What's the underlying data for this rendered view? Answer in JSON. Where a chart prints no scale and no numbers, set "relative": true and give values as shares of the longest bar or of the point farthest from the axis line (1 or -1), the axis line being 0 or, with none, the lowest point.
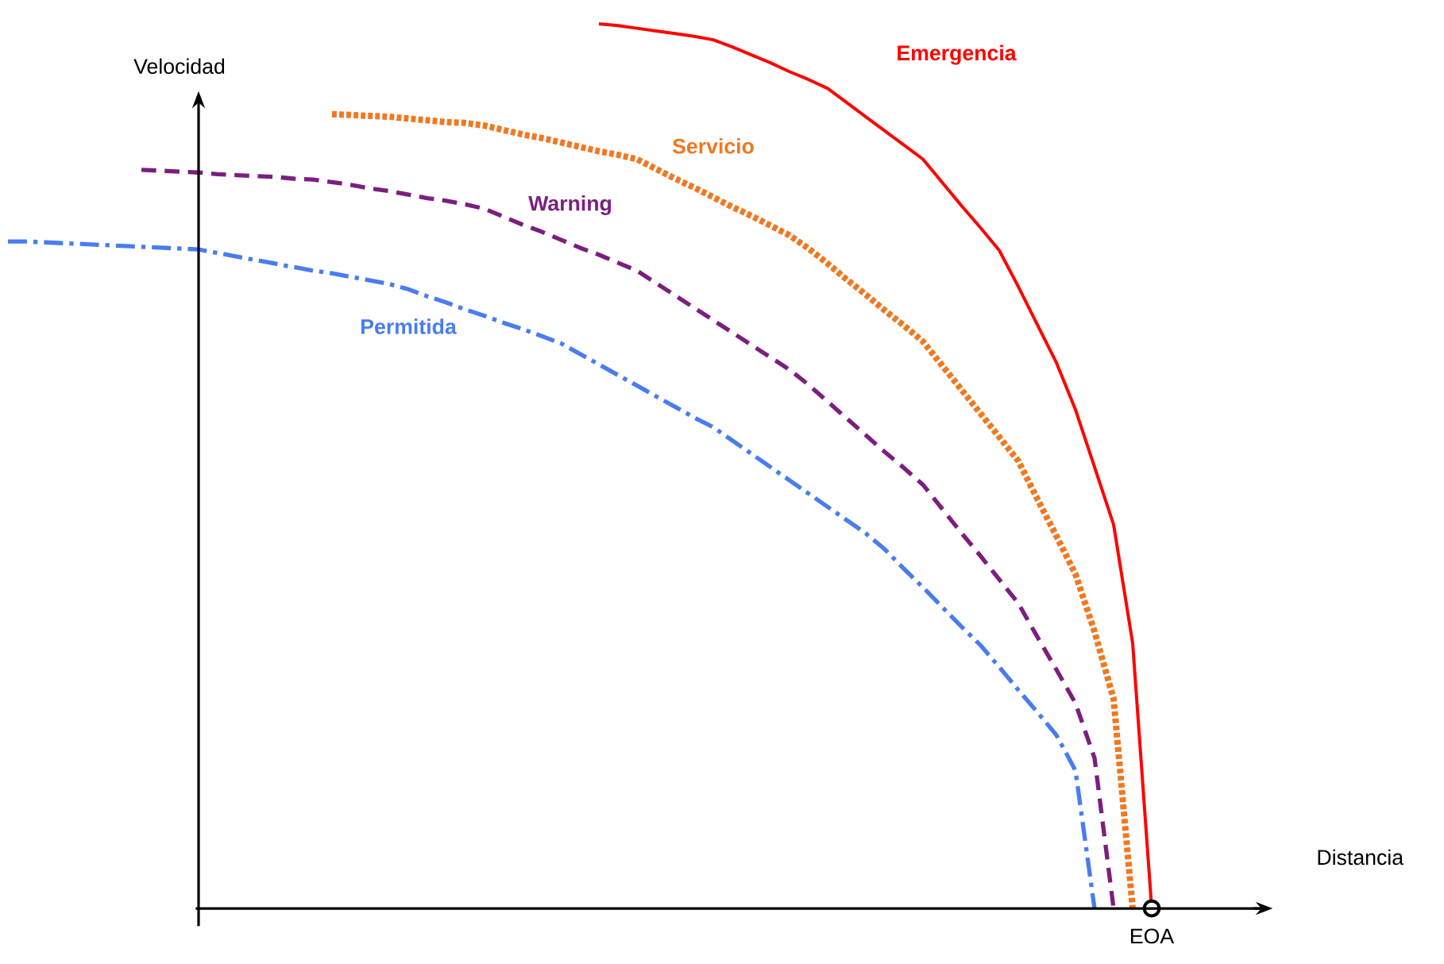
{
  "chart_data": {
    "type": "line",
    "relative": true,
    "ylabel": "Velocidad",
    "legend": false,
    "marker": "none",
    "annotations": [
      "EOA",
      "Distancia"
    ],
    "categories": [
      null,
      null,
      null,
      null,
      null,
      null,
      null,
      null,
      null,
      null,
      null,
      null,
      null,
      null,
      null,
      null,
      null,
      null,
      null,
      null,
      null,
      null,
      null,
      null,
      null,
      null,
      null,
      null,
      null,
      null,
      null,
      null,
      null,
      null,
      null,
      null,
      null,
      null,
      null,
      null,
      null,
      null,
      null,
      null,
      null,
      null,
      null,
      null,
      null,
      null,
      null,
      null,
      null,
      null,
      null,
      null,
      null,
      null,
      null,
      null,
      null
    ],
    "series": [
      {
        "name": "Emergencia",
        "color": "#ff0000",
        "line_style": "solid",
        "values": [
          null,
          null,
          null,
          null,
          null,
          null,
          null,
          null,
          null,
          null,
          null,
          null,
          null,
          null,
          null,
          null,
          null,
          null,
          null,
          null,
          null,
          null,
          null,
          null,
          null,
          null,
          null,
          null,
          null,
          null,
          null,
          1.0,
          0.998,
          0.995,
          0.992,
          0.989,
          0.986,
          0.982,
          0.974,
          0.965,
          0.956,
          0.946,
          0.937,
          0.927,
          0.911,
          0.895,
          0.879,
          0.863,
          0.847,
          0.821,
          0.795,
          0.77,
          0.744,
          0.703,
          0.66,
          0.617,
          0.564,
          0.499,
          0.434,
          0.3,
          0
        ]
      },
      {
        "name": "Servicio",
        "color": "#f07820",
        "line_style": "dotted",
        "values": [
          null,
          null,
          null,
          null,
          null,
          null,
          null,
          null,
          null,
          null,
          null,
          null,
          null,
          null,
          null,
          null,
          null,
          0.898,
          0.897,
          0.896,
          0.895,
          0.893,
          0.891,
          0.889,
          0.888,
          0.885,
          0.88,
          0.875,
          0.871,
          0.866,
          0.861,
          0.856,
          0.852,
          0.847,
          0.836,
          0.825,
          0.815,
          0.804,
          0.793,
          0.783,
          0.772,
          0.761,
          0.746,
          0.729,
          0.711,
          0.694,
          0.676,
          0.659,
          0.641,
          0.614,
          0.587,
          0.56,
          0.533,
          0.506,
          0.463,
          0.421,
          0.378,
          0.313,
          0.237,
          0,
          null
        ]
      },
      {
        "name": "Warning",
        "color": "#7b1f7f",
        "line_style": "dashed",
        "values": [
          null,
          null,
          null,
          null,
          null,
          null,
          null,
          0.835,
          0.834,
          0.833,
          0.832,
          0.83,
          0.829,
          0.828,
          0.827,
          0.825,
          0.824,
          0.821,
          0.818,
          0.814,
          0.811,
          0.807,
          0.803,
          0.8,
          0.796,
          0.791,
          0.782,
          0.773,
          0.765,
          0.756,
          0.747,
          0.739,
          0.73,
          0.721,
          0.707,
          0.693,
          0.679,
          0.665,
          0.651,
          0.637,
          0.623,
          0.609,
          0.592,
          0.573,
          0.554,
          0.535,
          0.516,
          0.498,
          0.479,
          0.452,
          0.425,
          0.399,
          0.372,
          0.345,
          0.307,
          0.27,
          0.232,
          0.17,
          0,
          null,
          null
        ]
      },
      {
        "name": "Permitida",
        "color": "#4a7cf0",
        "line_style": "dashdot",
        "values": [
          0.754,
          0.754,
          0.753,
          0.752,
          0.751,
          0.75,
          0.749,
          0.748,
          0.747,
          0.746,
          0.745,
          0.741,
          0.737,
          0.733,
          0.729,
          0.725,
          0.721,
          0.718,
          0.714,
          0.71,
          0.706,
          0.7,
          0.692,
          0.685,
          0.677,
          0.67,
          0.662,
          0.655,
          0.647,
          0.639,
          0.627,
          0.615,
          0.603,
          0.591,
          0.579,
          0.567,
          0.555,
          0.544,
          0.529,
          0.514,
          0.499,
          0.484,
          0.469,
          0.454,
          0.439,
          0.424,
          0.406,
          0.384,
          0.363,
          0.341,
          0.319,
          0.298,
          0.273,
          0.247,
          0.222,
          0.196,
          0.156,
          0,
          null,
          null,
          null
        ]
      }
    ]
  }
}
